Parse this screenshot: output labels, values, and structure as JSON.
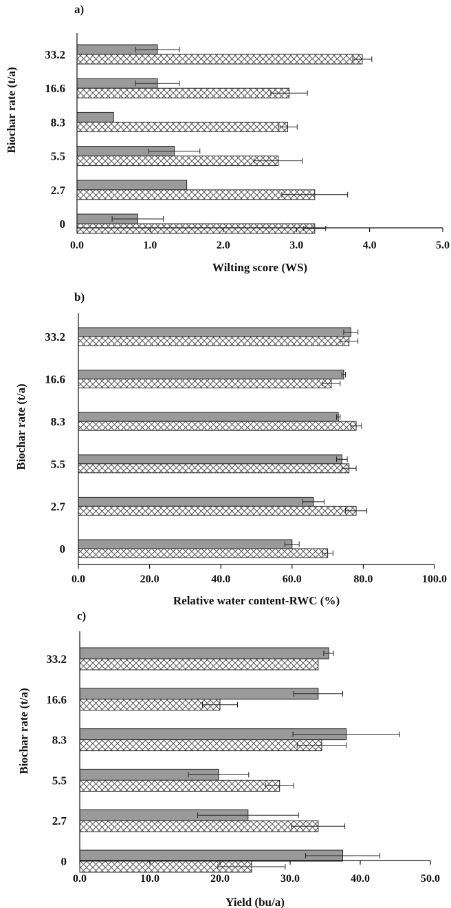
{
  "colors": {
    "solid_bar": "#9a9a9a",
    "hatched_bar": "#ffffff",
    "hatch_line": "#555555",
    "axis": "#111111"
  },
  "chart_data": [
    {
      "type": "bar",
      "orientation": "horizontal",
      "panel_label": "a)",
      "xlabel": "Wilting score (WS)",
      "ylabel": "Biochar rate (t/a)",
      "xlim": [
        0,
        5
      ],
      "xticks": [
        "0.0",
        "1.0",
        "2.0",
        "3.0",
        "4.0",
        "5.0"
      ],
      "categories": [
        "33.2",
        "16.6",
        "8.3",
        "5.5",
        "2.7",
        "0"
      ],
      "series": [
        {
          "style": "solid-gray",
          "values": [
            1.1,
            1.1,
            0.5,
            1.33,
            1.5,
            0.83
          ],
          "errors": [
            0.3,
            0.3,
            0.0,
            0.35,
            0.0,
            0.35
          ]
        },
        {
          "style": "crosshatch",
          "values": [
            3.9,
            2.9,
            2.88,
            2.75,
            3.25,
            3.25
          ],
          "errors": [
            0.13,
            0.25,
            0.13,
            0.33,
            0.45,
            0.15
          ]
        }
      ],
      "grid": false
    },
    {
      "type": "bar",
      "orientation": "horizontal",
      "panel_label": "b)",
      "xlabel": "Relative water content-RWC (%)",
      "ylabel": "Biochar rate (t/a)",
      "xlim": [
        0,
        100
      ],
      "xticks": [
        "0.0",
        "20.0",
        "40.0",
        "60.0",
        "80.0",
        "100.0"
      ],
      "categories": [
        "33.2",
        "16.6",
        "8.3",
        "5.5",
        "2.7",
        "0"
      ],
      "series": [
        {
          "style": "solid-gray",
          "values": [
            76.5,
            74.5,
            73.0,
            74.0,
            66.0,
            60.0
          ],
          "errors": [
            2.0,
            0.5,
            0.5,
            1.5,
            3.0,
            2.0
          ]
        },
        {
          "style": "crosshatch",
          "values": [
            76.0,
            71.0,
            78.0,
            76.0,
            78.0,
            70.0
          ],
          "errors": [
            2.5,
            2.5,
            1.5,
            2.0,
            3.0,
            1.5
          ]
        }
      ],
      "grid": false
    },
    {
      "type": "bar",
      "orientation": "horizontal",
      "panel_label": "c)",
      "xlabel": "Yield (bu/a)",
      "ylabel": "Biochar rate  (t/a)",
      "xlim": [
        0,
        50
      ],
      "xticks": [
        "0.0",
        "10.0",
        "20.0",
        "30.0",
        "40.0",
        "50.0"
      ],
      "categories": [
        "33.2",
        "16.6",
        "8.3",
        "5.5",
        "2.7",
        "0"
      ],
      "series": [
        {
          "style": "solid-gray",
          "values": [
            35.5,
            34.0,
            38.0,
            19.8,
            24.0,
            37.5
          ],
          "errors": [
            0.7,
            3.5,
            7.6,
            4.3,
            7.2,
            5.3
          ]
        },
        {
          "style": "crosshatch",
          "values": [
            34.0,
            20.0,
            34.5,
            28.5,
            34.0,
            24.5
          ],
          "errors": [
            0.0,
            2.5,
            3.5,
            2.0,
            3.8,
            4.8
          ]
        }
      ],
      "grid": false
    }
  ]
}
